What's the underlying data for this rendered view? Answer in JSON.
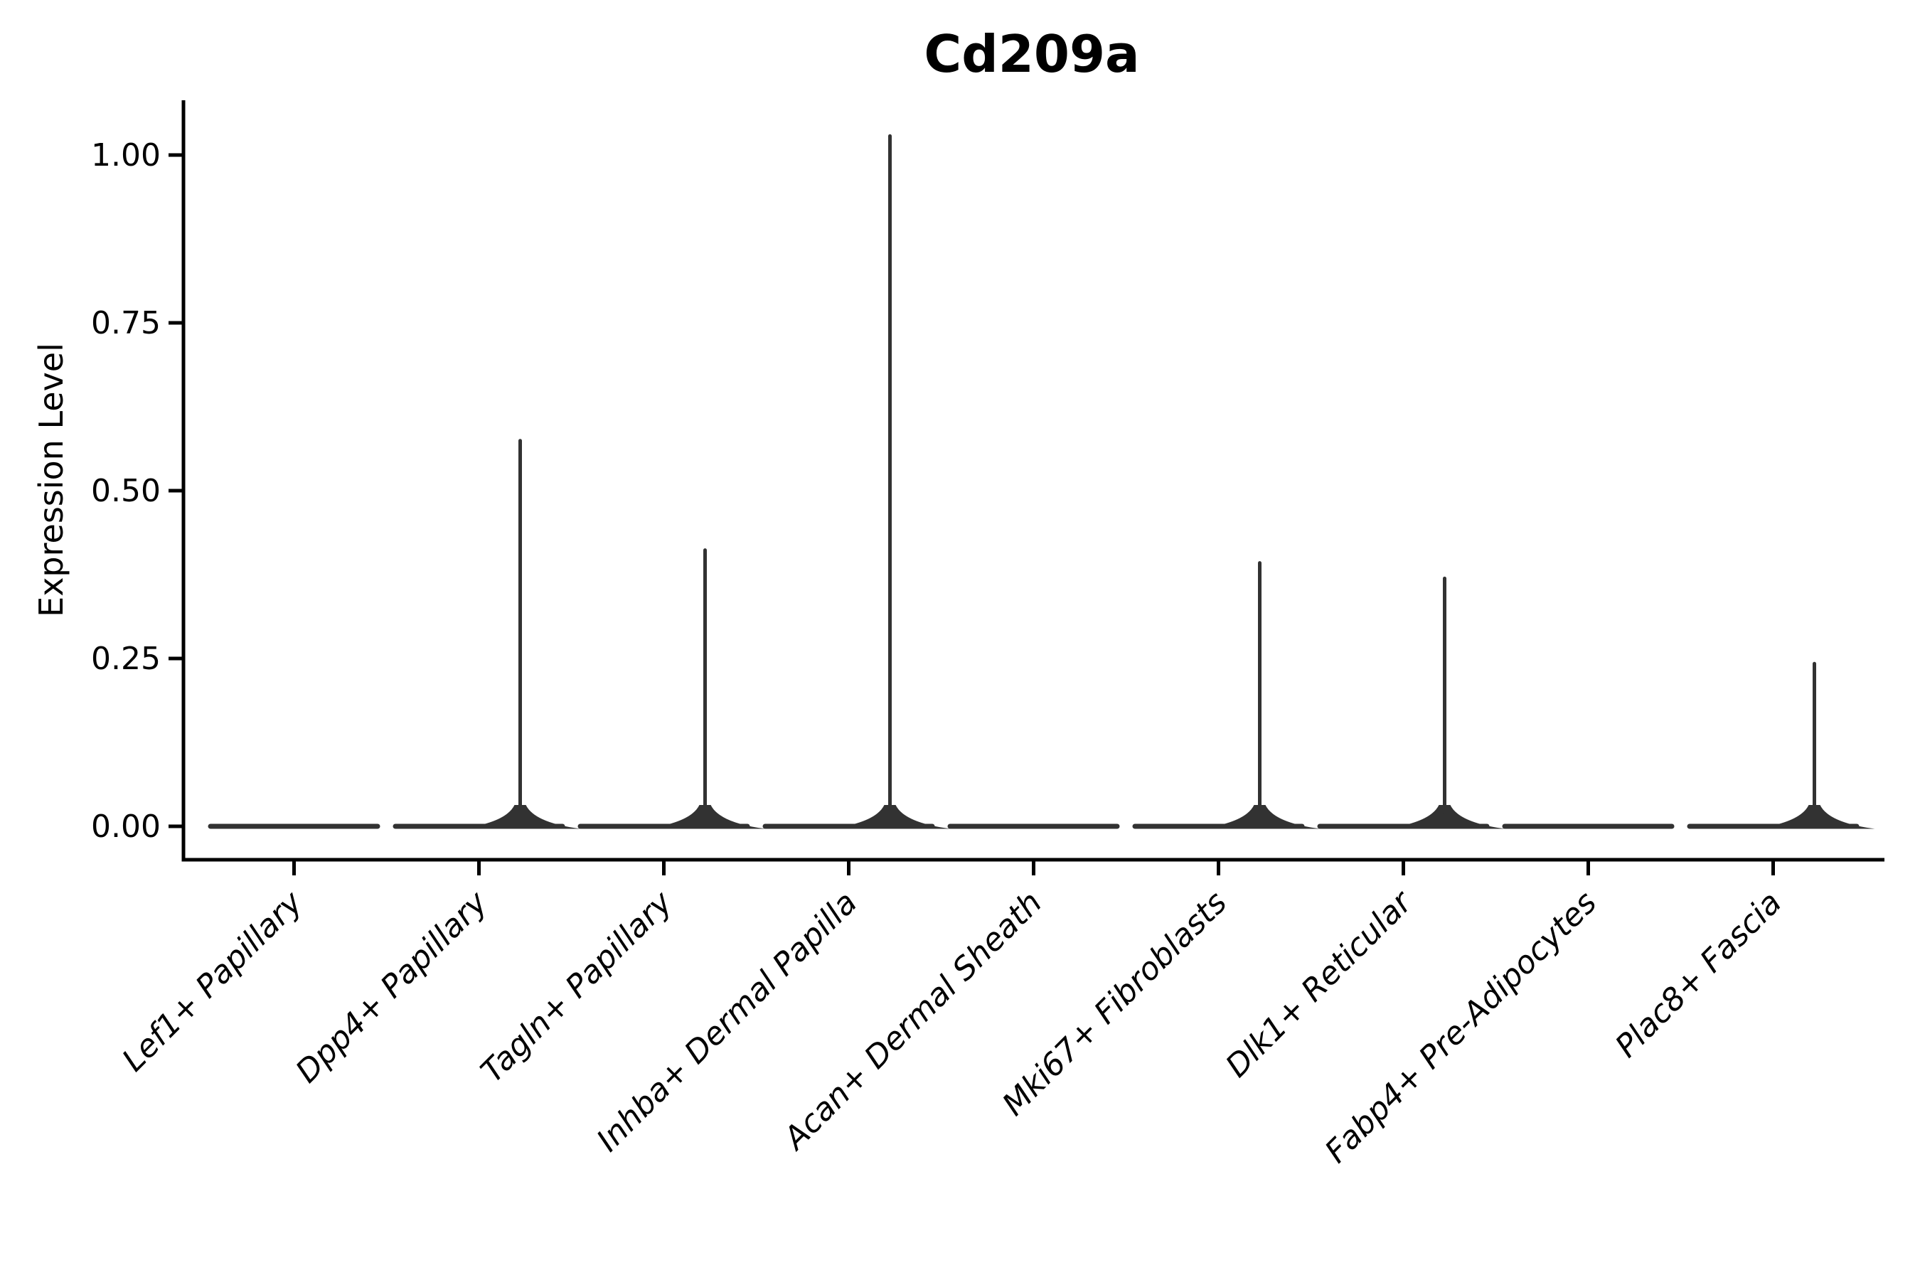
{
  "figure": {
    "title": "Cd209a"
  },
  "chart_data": {
    "type": "violin",
    "title": "Cd209a",
    "xlabel": "",
    "ylabel": "Expression Level",
    "categories": [
      "Lef1+ Papillary",
      "Dpp4+ Papillary",
      "Tagln+ Papillary",
      "Inhba+ Dermal Papilla",
      "Acan+ Dermal Sheath",
      "Mki67+ Fibroblasts",
      "Dlk1+ Reticular",
      "Fabp4+ Pre-Adipocytes",
      "Plac8+ Fascia"
    ],
    "values_note": "Top of each violin spike in Expression Level units; null = violin is flat at 0 (no expressing cells)",
    "values": [
      null,
      0.577,
      0.414,
      1.031,
      null,
      0.395,
      0.372,
      null,
      0.245
    ],
    "baseline_value": 0,
    "yticks": [
      0,
      0.25,
      0.5,
      0.75,
      1.0
    ],
    "ytick_labels": [
      "0.00",
      "0.25",
      "0.50",
      "0.75",
      "1.00"
    ],
    "ylim": [
      -0.05,
      1.08
    ],
    "grid": false,
    "legend": null,
    "x_tick_rotation_deg": 45,
    "x_tick_style": "italic"
  },
  "colors": {
    "background": "#ffffff",
    "axis": "#000000",
    "violin": "#323232",
    "text": "#000000"
  }
}
